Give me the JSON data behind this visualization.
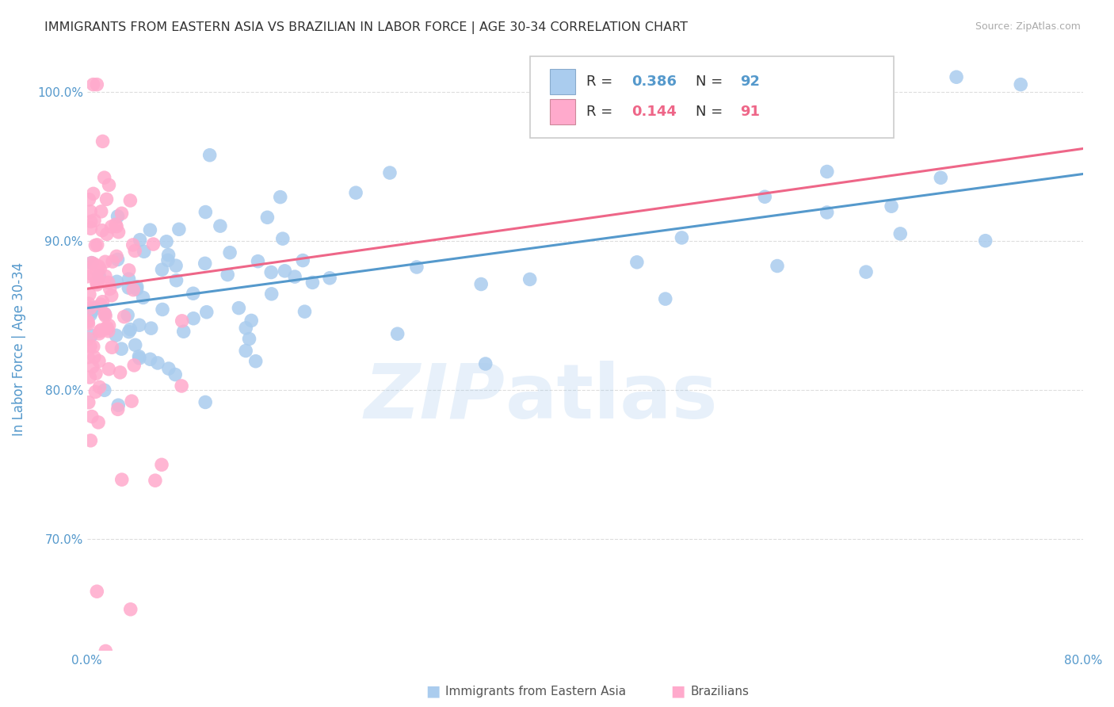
{
  "title": "IMMIGRANTS FROM EASTERN ASIA VS BRAZILIAN IN LABOR FORCE | AGE 30-34 CORRELATION CHART",
  "source": "Source: ZipAtlas.com",
  "ylabel": "In Labor Force | Age 30-34",
  "xlim": [
    0.0,
    0.8
  ],
  "ylim": [
    0.625,
    1.03
  ],
  "xticks": [
    0.0,
    0.1,
    0.2,
    0.3,
    0.4,
    0.5,
    0.6,
    0.7,
    0.8
  ],
  "xticklabels": [
    "0.0%",
    "",
    "",
    "",
    "",
    "",
    "",
    "",
    "80.0%"
  ],
  "yticks": [
    0.7,
    0.8,
    0.9,
    1.0
  ],
  "yticklabels": [
    "70.0%",
    "80.0%",
    "90.0%",
    "100.0%"
  ],
  "blue_scatter_color": "#aaccee",
  "pink_scatter_color": "#ffaacc",
  "blue_line_color": "#5599cc",
  "pink_line_color": "#ee6688",
  "blue_R": 0.386,
  "blue_N": 92,
  "pink_R": 0.144,
  "pink_N": 91,
  "blue_line_x0": 0.0,
  "blue_line_y0": 0.855,
  "blue_line_x1": 0.8,
  "blue_line_y1": 0.945,
  "pink_line_x0": 0.0,
  "pink_line_y0": 0.868,
  "pink_line_x1": 0.8,
  "pink_line_y1": 0.962,
  "watermark_part1": "ZIP",
  "watermark_part2": "atlas",
  "background_color": "#ffffff",
  "grid_color": "#dddddd",
  "title_color": "#333333",
  "axis_label_color": "#5599cc",
  "tick_color": "#5599cc"
}
